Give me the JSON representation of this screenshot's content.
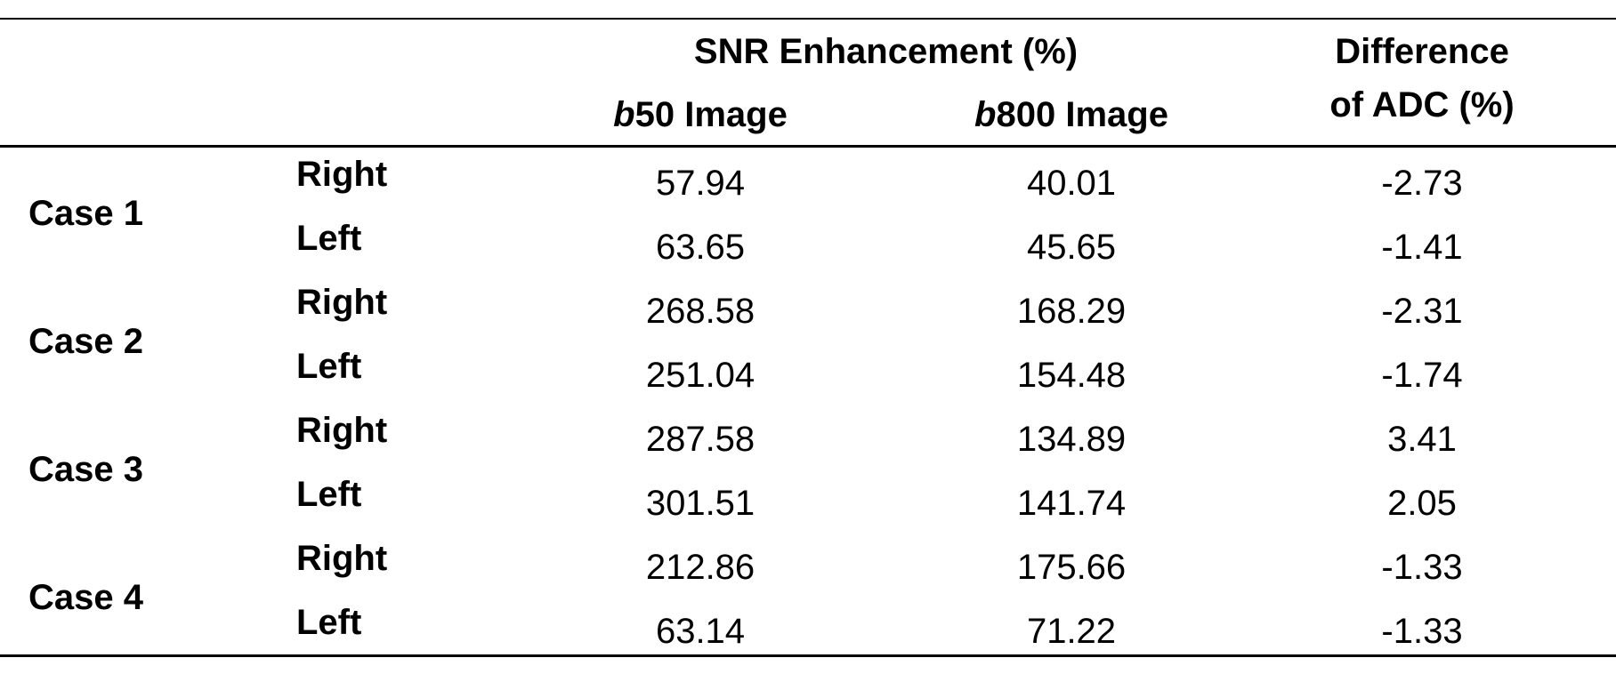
{
  "table": {
    "header": {
      "group": "SNR Enhancement (%)",
      "columns": [
        "b50 Image",
        "b800 Image"
      ],
      "last": [
        "Difference",
        "of ADC (%)"
      ]
    },
    "rows": [
      {
        "case": "Case 1",
        "sides": [
          {
            "side": "Right",
            "values": [
              "57.94",
              "40.01",
              "-2.73"
            ]
          },
          {
            "side": "Left",
            "values": [
              "63.65",
              "45.65",
              "-1.41"
            ]
          }
        ]
      },
      {
        "case": "Case 2",
        "sides": [
          {
            "side": "Right",
            "values": [
              "268.58",
              "168.29",
              "-2.31"
            ]
          },
          {
            "side": "Left",
            "values": [
              "251.04",
              "154.48",
              "-1.74"
            ]
          }
        ]
      },
      {
        "case": "Case 3",
        "sides": [
          {
            "side": "Right",
            "values": [
              "287.58",
              "134.89",
              "3.41"
            ]
          },
          {
            "side": "Left",
            "values": [
              "301.51",
              "141.74",
              "2.05"
            ]
          }
        ]
      },
      {
        "case": "Case 4",
        "sides": [
          {
            "side": "Right",
            "values": [
              "212.86",
              "175.66",
              "-1.33"
            ]
          },
          {
            "side": "Left",
            "values": [
              "63.14",
              "71.22",
              "-1.33"
            ]
          }
        ]
      }
    ]
  }
}
